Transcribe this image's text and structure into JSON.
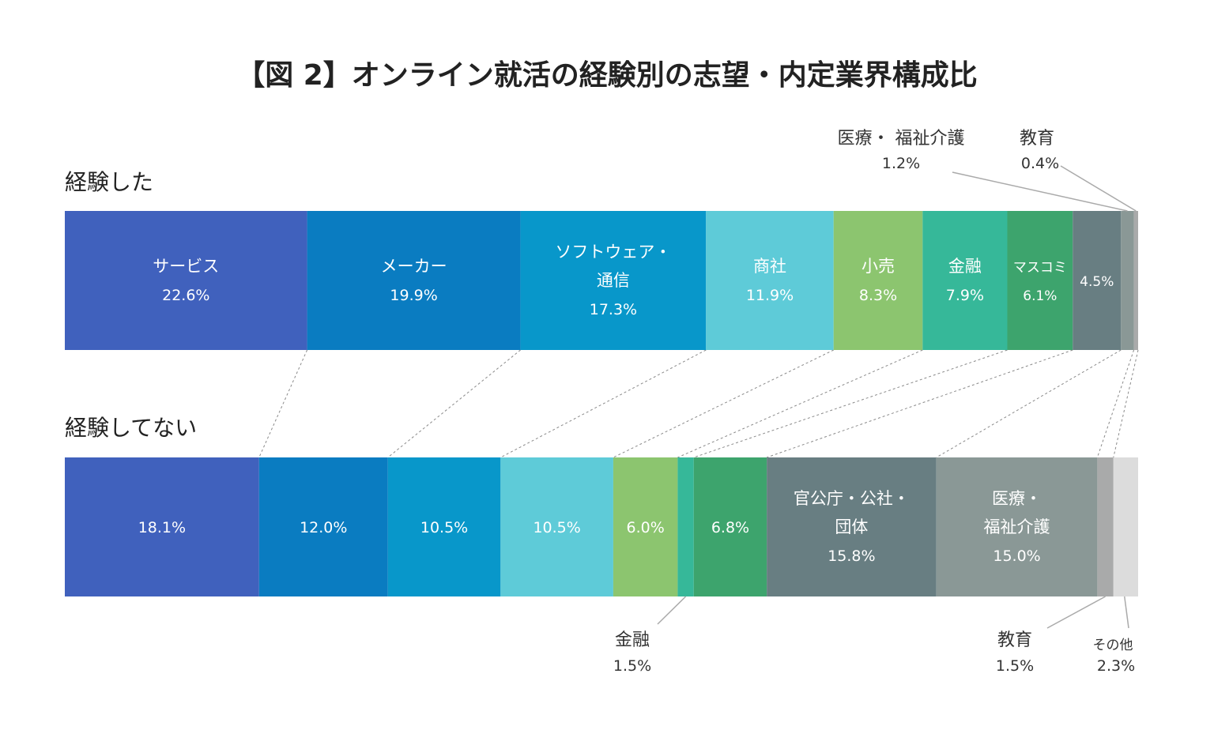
{
  "chart_data": {
    "type": "bar",
    "orientation": "horizontal-stacked-100",
    "title": "【図 2】オンライン就活の経験別の志望・内定業界構成比",
    "rows": [
      "経験した",
      "経験してない"
    ],
    "series": [
      {
        "key": "service",
        "name": "サービス",
        "color": "#4061bd",
        "values": [
          22.6,
          18.1
        ]
      },
      {
        "key": "maker",
        "name": "メーカー",
        "color": "#0a7cc1",
        "values": [
          19.9,
          12.0
        ]
      },
      {
        "key": "software",
        "name": "ソフトウェア・通信",
        "color": "#0897ca",
        "values": [
          17.3,
          10.5
        ]
      },
      {
        "key": "trading",
        "name": "商社",
        "color": "#5ecbd8",
        "values": [
          11.9,
          10.5
        ]
      },
      {
        "key": "retail",
        "name": "小売",
        "color": "#8cc56f",
        "values": [
          8.3,
          6.0
        ]
      },
      {
        "key": "finance",
        "name": "金融",
        "color": "#36b899",
        "values": [
          7.9,
          1.5
        ]
      },
      {
        "key": "media",
        "name": "マスコミ",
        "color": "#3da46d",
        "values": [
          6.1,
          6.8
        ]
      },
      {
        "key": "public",
        "name": "官公庁・公社・団体",
        "color": "#687e82",
        "values": [
          4.5,
          15.8
        ]
      },
      {
        "key": "medical",
        "name": "医療・福祉介護",
        "color": "#8a9896",
        "values": [
          1.2,
          15.0
        ]
      },
      {
        "key": "education",
        "name": "教育",
        "color": "#a9aaaa",
        "values": [
          0.4,
          1.5
        ]
      },
      {
        "key": "other",
        "name": "その他",
        "color": "#dcdcdc",
        "values": [
          0.0,
          2.3
        ]
      }
    ],
    "bar_labels": {
      "row1": [
        {
          "name": "サービス",
          "value": "22.6%"
        },
        {
          "name": "メーカー",
          "value": "19.9%"
        },
        {
          "name": "ソフトウェア・",
          "name2": "通信",
          "value": "17.3%"
        },
        {
          "name": "商社",
          "value": "11.9%"
        },
        {
          "name": "小売",
          "value": "8.3%"
        },
        {
          "name": "金融",
          "value": "7.9%"
        },
        {
          "name": "マスコミ",
          "value": "6.1%"
        },
        {
          "value": "4.5%"
        }
      ],
      "row2": [
        {
          "value": "18.1%"
        },
        {
          "value": "12.0%"
        },
        {
          "value": "10.5%"
        },
        {
          "value": "10.5%"
        },
        {
          "value": "6.0%"
        },
        {
          "value": "6.8%"
        },
        {
          "name": "官公庁・公社・",
          "name2": "団体",
          "value": "15.8%"
        },
        {
          "name": "医療・",
          "name2": "福祉介護",
          "value": "15.0%"
        }
      ]
    },
    "callouts": {
      "row1": [
        {
          "name": "医療・ 福祉介護",
          "value": "1.2%"
        },
        {
          "name": "教育",
          "value": "0.4%"
        }
      ],
      "row2": [
        {
          "name": "金融",
          "value": "1.5%"
        },
        {
          "name": "教育",
          "value": "1.5%"
        },
        {
          "name": "その他",
          "value": "2.3%"
        }
      ]
    }
  }
}
